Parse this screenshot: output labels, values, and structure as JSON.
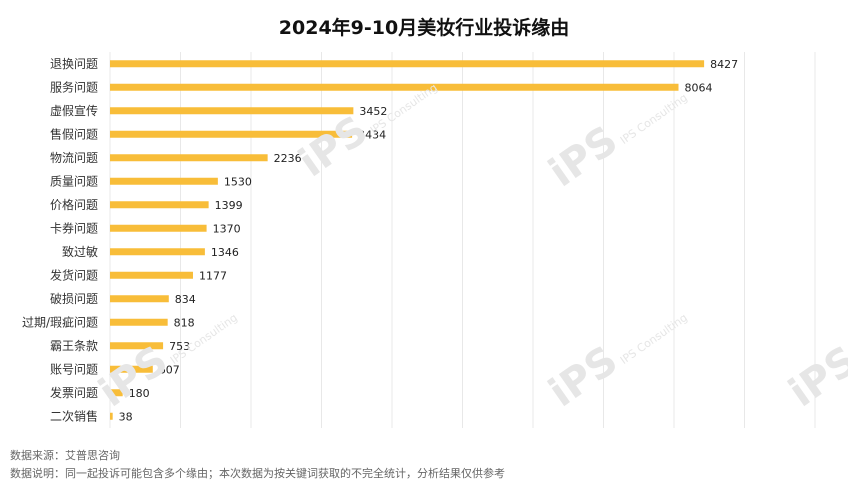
{
  "chart_data": {
    "type": "bar",
    "orientation": "horizontal",
    "title": "2024年9-10月美妆行业投诉缘由",
    "categories": [
      "退换问题",
      "服务问题",
      "虚假宣传",
      "售假问题",
      "物流问题",
      "质量问题",
      "价格问题",
      "卡券问题",
      "致过敏",
      "发货问题",
      "破损问题",
      "过期/瑕疵问题",
      "霸王条款",
      "账号问题",
      "发票问题",
      "二次销售"
    ],
    "values": [
      8427,
      8064,
      3452,
      3434,
      2236,
      1530,
      1399,
      1370,
      1346,
      1177,
      834,
      818,
      753,
      607,
      180,
      38
    ],
    "xlim": [
      0,
      10000
    ],
    "grid": true,
    "bar_color": "#f8bd39",
    "grid_color": "#e8e8e8"
  },
  "watermark": {
    "text": "iPS 艾普思",
    "sub": "IPS Consulting"
  },
  "footnotes": {
    "source": "数据来源：艾普思咨询",
    "note": "数据说明：同一起投诉可能包含多个缘由；本次数据为按关键词获取的不完全统计，分析结果仅供参考"
  }
}
